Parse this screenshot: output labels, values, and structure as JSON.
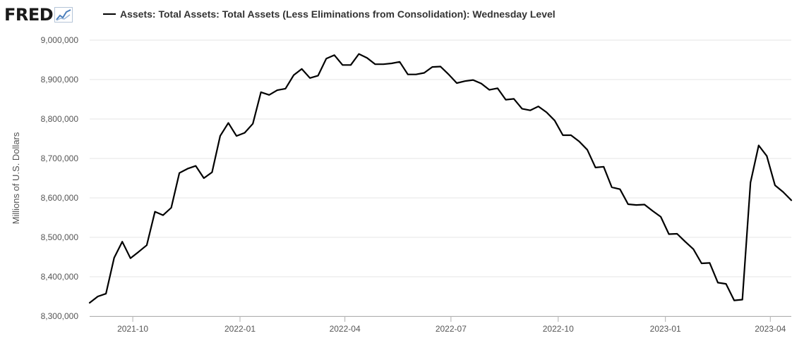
{
  "brand": {
    "name": "FRED",
    "logo_icon": "chart-line-icon"
  },
  "legend": {
    "label": "Assets: Total Assets: Total Assets (Less Eliminations from Consolidation): Wednesday Level"
  },
  "chart_data": {
    "type": "line",
    "title": "",
    "xlabel": "",
    "ylabel": "Millions of U.S. Dollars",
    "ylim": [
      8300000,
      9000000
    ],
    "yticks": [
      "8,300,000",
      "8,400,000",
      "8,500,000",
      "8,600,000",
      "8,700,000",
      "8,800,000",
      "8,900,000",
      "9,000,000"
    ],
    "xticks": [
      "2021-10",
      "2022-01",
      "2022-04",
      "2022-07",
      "2022-10",
      "2023-01",
      "2023-04"
    ],
    "grid": true,
    "legend_position": "top",
    "series": [
      {
        "name": "Assets: Total Assets: Total Assets (Less Eliminations from Consolidation): Wednesday Level",
        "color": "#000000",
        "x": [
          "2021-08-25",
          "2021-09-01",
          "2021-09-08",
          "2021-09-15",
          "2021-09-22",
          "2021-09-29",
          "2021-10-06",
          "2021-10-13",
          "2021-10-20",
          "2021-10-27",
          "2021-11-03",
          "2021-11-10",
          "2021-11-17",
          "2021-11-24",
          "2021-12-01",
          "2021-12-08",
          "2021-12-15",
          "2021-12-22",
          "2021-12-29",
          "2022-01-05",
          "2022-01-12",
          "2022-01-19",
          "2022-01-26",
          "2022-02-02",
          "2022-02-09",
          "2022-02-16",
          "2022-02-23",
          "2022-03-02",
          "2022-03-09",
          "2022-03-16",
          "2022-03-23",
          "2022-03-30",
          "2022-04-06",
          "2022-04-13",
          "2022-04-20",
          "2022-04-27",
          "2022-05-04",
          "2022-05-11",
          "2022-05-18",
          "2022-05-25",
          "2022-06-01",
          "2022-06-08",
          "2022-06-15",
          "2022-06-22",
          "2022-06-29",
          "2022-07-06",
          "2022-07-13",
          "2022-07-20",
          "2022-07-27",
          "2022-08-03",
          "2022-08-10",
          "2022-08-17",
          "2022-08-24",
          "2022-08-31",
          "2022-09-07",
          "2022-09-14",
          "2022-09-21",
          "2022-09-28",
          "2022-10-05",
          "2022-10-12",
          "2022-10-19",
          "2022-10-26",
          "2022-11-02",
          "2022-11-09",
          "2022-11-16",
          "2022-11-23",
          "2022-11-30",
          "2022-12-07",
          "2022-12-14",
          "2022-12-21",
          "2022-12-28",
          "2023-01-04",
          "2023-01-11",
          "2023-01-18",
          "2023-01-25",
          "2023-02-01",
          "2023-02-08",
          "2023-02-15",
          "2023-02-22",
          "2023-03-01",
          "2023-03-08",
          "2023-03-15",
          "2023-03-22",
          "2023-03-29",
          "2023-04-05",
          "2023-04-12",
          "2023-04-19"
        ],
        "values": [
          8334000,
          8350000,
          8357000,
          8448000,
          8489000,
          8447000,
          8463000,
          8480000,
          8565000,
          8556000,
          8575000,
          8663000,
          8674000,
          8681000,
          8650000,
          8665000,
          8757000,
          8790000,
          8757000,
          8765000,
          8788000,
          8868000,
          8861000,
          8873000,
          8877000,
          8911000,
          8927000,
          8904000,
          8910000,
          8953000,
          8962000,
          8937000,
          8937000,
          8965000,
          8955000,
          8939000,
          8939000,
          8941000,
          8945000,
          8913000,
          8913000,
          8917000,
          8932000,
          8933000,
          8913000,
          8891000,
          8896000,
          8899000,
          8890000,
          8874000,
          8878000,
          8849000,
          8851000,
          8826000,
          8822000,
          8832000,
          8817000,
          8796000,
          8759000,
          8759000,
          8743000,
          8722000,
          8677000,
          8679000,
          8627000,
          8622000,
          8584000,
          8582000,
          8583000,
          8567000,
          8552000,
          8508000,
          8509000,
          8489000,
          8470000,
          8434000,
          8435000,
          8385000,
          8382000,
          8340000,
          8342000,
          8639000,
          8733000,
          8706000,
          8632000,
          8615000,
          8594000
        ]
      }
    ]
  }
}
